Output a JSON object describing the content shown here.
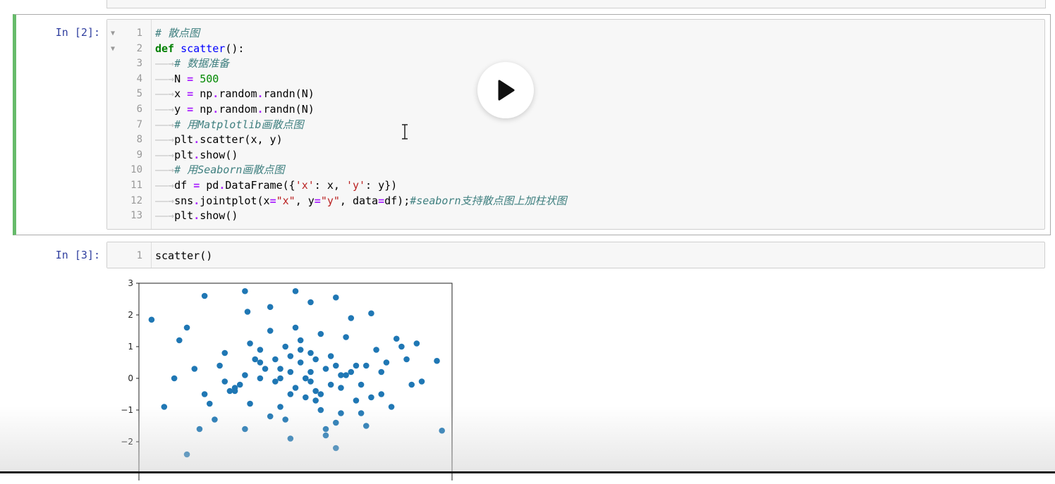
{
  "cells": [
    {
      "prompt": "In [2]:",
      "lines": [
        {
          "n": "1",
          "fold": true,
          "indent": false,
          "tokens": [
            {
              "t": "com",
              "v": "# 散点图"
            }
          ]
        },
        {
          "n": "2",
          "fold": true,
          "indent": false,
          "tokens": [
            {
              "t": "kw",
              "v": "def"
            },
            {
              "t": "",
              "v": " "
            },
            {
              "t": "def",
              "v": "scatter"
            },
            {
              "t": "",
              "v": "():"
            }
          ]
        },
        {
          "n": "3",
          "fold": false,
          "indent": true,
          "tokens": [
            {
              "t": "com",
              "v": "# 数据准备"
            }
          ]
        },
        {
          "n": "4",
          "fold": false,
          "indent": true,
          "tokens": [
            {
              "t": "",
              "v": "N "
            },
            {
              "t": "op",
              "v": "="
            },
            {
              "t": "",
              "v": " "
            },
            {
              "t": "num",
              "v": "500"
            }
          ]
        },
        {
          "n": "5",
          "fold": false,
          "indent": true,
          "tokens": [
            {
              "t": "",
              "v": "x "
            },
            {
              "t": "op",
              "v": "="
            },
            {
              "t": "",
              "v": " np"
            },
            {
              "t": "op",
              "v": "."
            },
            {
              "t": "",
              "v": "random"
            },
            {
              "t": "op",
              "v": "."
            },
            {
              "t": "",
              "v": "randn(N)"
            }
          ]
        },
        {
          "n": "6",
          "fold": false,
          "indent": true,
          "tokens": [
            {
              "t": "",
              "v": "y "
            },
            {
              "t": "op",
              "v": "="
            },
            {
              "t": "",
              "v": " np"
            },
            {
              "t": "op",
              "v": "."
            },
            {
              "t": "",
              "v": "random"
            },
            {
              "t": "op",
              "v": "."
            },
            {
              "t": "",
              "v": "randn(N)"
            }
          ]
        },
        {
          "n": "7",
          "fold": false,
          "indent": true,
          "tokens": [
            {
              "t": "com",
              "v": "# 用Matplotlib画散点图"
            }
          ]
        },
        {
          "n": "8",
          "fold": false,
          "indent": true,
          "tokens": [
            {
              "t": "",
              "v": "plt"
            },
            {
              "t": "op",
              "v": "."
            },
            {
              "t": "",
              "v": "scatter(x, y)"
            }
          ]
        },
        {
          "n": "9",
          "fold": false,
          "indent": true,
          "tokens": [
            {
              "t": "",
              "v": "plt"
            },
            {
              "t": "op",
              "v": "."
            },
            {
              "t": "",
              "v": "show()"
            }
          ]
        },
        {
          "n": "10",
          "fold": false,
          "indent": true,
          "tokens": [
            {
              "t": "com",
              "v": "# 用Seaborn画散点图"
            }
          ]
        },
        {
          "n": "11",
          "fold": false,
          "indent": true,
          "tokens": [
            {
              "t": "",
              "v": "df "
            },
            {
              "t": "op",
              "v": "="
            },
            {
              "t": "",
              "v": " pd"
            },
            {
              "t": "op",
              "v": "."
            },
            {
              "t": "",
              "v": "DataFrame({"
            },
            {
              "t": "str",
              "v": "'x'"
            },
            {
              "t": "",
              "v": ": x, "
            },
            {
              "t": "str",
              "v": "'y'"
            },
            {
              "t": "",
              "v": ": y})"
            }
          ]
        },
        {
          "n": "12",
          "fold": false,
          "indent": true,
          "tokens": [
            {
              "t": "",
              "v": "sns"
            },
            {
              "t": "op",
              "v": "."
            },
            {
              "t": "",
              "v": "jointplot(x"
            },
            {
              "t": "op",
              "v": "="
            },
            {
              "t": "str",
              "v": "\"x\""
            },
            {
              "t": "",
              "v": ", y"
            },
            {
              "t": "op",
              "v": "="
            },
            {
              "t": "str",
              "v": "\"y\""
            },
            {
              "t": "",
              "v": ", data"
            },
            {
              "t": "op",
              "v": "="
            },
            {
              "t": "",
              "v": "df);"
            },
            {
              "t": "com",
              "v": "#seaborn支持散点图上加柱状图"
            }
          ]
        },
        {
          "n": "13",
          "fold": false,
          "indent": true,
          "tokens": [
            {
              "t": "",
              "v": "plt"
            },
            {
              "t": "op",
              "v": "."
            },
            {
              "t": "",
              "v": "show()"
            }
          ]
        }
      ]
    },
    {
      "prompt": "In [3]:",
      "lines": [
        {
          "n": "1",
          "fold": false,
          "indent": false,
          "tokens": [
            {
              "t": "",
              "v": "scatter()"
            }
          ]
        }
      ]
    }
  ],
  "icons": {
    "play": "play-icon",
    "cursor": "text-cursor-icon"
  },
  "colors": {
    "selected_cell_border": "#66bb6a",
    "prompt": "#303f9f",
    "scatter_point": "#1f77b4"
  },
  "chart_data": {
    "type": "scatter",
    "ylim": [
      -3,
      3
    ],
    "xlim": [
      -3.0,
      3.2
    ],
    "yticks": [
      "3",
      "2",
      "1",
      "0",
      "−1",
      "−2"
    ],
    "series": [
      {
        "x": [
          -2.75,
          -2.2,
          -2.05,
          -0.9,
          -0.85,
          0.1,
          0.4,
          -0.4,
          0.9,
          1.2,
          -1.7,
          1.6,
          2.1,
          2.5,
          2.9,
          -2.3,
          0.0,
          -1.1,
          1.0,
          0.5,
          -0.6,
          0.3,
          -0.2,
          0.7,
          1.4,
          -1.3,
          1.8,
          2.3,
          -0.1,
          0.6,
          -0.8,
          1.1,
          -1.5,
          0.2,
          0.9,
          -0.4,
          1.5,
          2.0,
          -2.05,
          -1.8,
          0.8,
          1.3,
          -0.3,
          0.4,
          -1.0,
          0.0,
          0.5,
          1.7,
          -0.6,
          1.0,
          2.6,
          -1.4,
          0.2,
          -0.9,
          1.2,
          -0.2,
          0.7,
          -1.2,
          0.3,
          1.9,
          -0.5,
          0.1,
          0.6,
          -0.7,
          1.6,
          2.2,
          -1.6,
          0.9,
          -0.1,
          0.4,
          -2.5,
          3.0,
          1.4,
          -1.9,
          0.8,
          0.0,
          -0.4,
          0.2,
          1.1,
          -0.8,
          0.5,
          -1.1,
          1.8,
          0.3,
          -0.3,
          0.7,
          1.3,
          -1.3,
          0.1,
          0.6,
          2.4,
          -0.6,
          0.9,
          -0.2,
          1.5,
          -1.7,
          0.4,
          0.0,
          -0.9,
          1.0
        ],
        "y": [
          1.85,
          1.2,
          1.6,
          2.75,
          2.1,
          2.75,
          2.4,
          2.25,
          2.55,
          1.9,
          2.6,
          2.05,
          1.25,
          1.1,
          0.55,
          0.0,
          0.2,
          -0.3,
          0.1,
          -0.4,
          0.5,
          -0.6,
          0.0,
          0.3,
          -0.2,
          0.8,
          -0.5,
          0.6,
          1.0,
          -1.0,
          -0.8,
          1.3,
          -1.3,
          0.9,
          -1.4,
          1.5,
          0.4,
          -0.9,
          -2.4,
          -1.6,
          0.7,
          -0.7,
          -0.1,
          0.2,
          -0.2,
          -0.5,
          0.6,
          0.9,
          0.0,
          -1.1,
          -0.1,
          0.4,
          1.2,
          -1.6,
          0.2,
          -0.9,
          -1.8,
          -0.4,
          0.0,
          0.5,
          0.3,
          -0.3,
          1.4,
          0.6,
          -0.6,
          1.0,
          -0.8,
          0.4,
          -1.3,
          0.8,
          -0.9,
          -1.65,
          -1.1,
          0.3,
          -0.2,
          0.7,
          -1.2,
          0.5,
          0.1,
          1.1,
          -0.7,
          -0.4,
          0.2,
          0.0,
          0.6,
          -1.6,
          0.4,
          -0.1,
          1.6,
          -0.5,
          -0.2,
          0.9,
          -2.2,
          0.3,
          -1.5,
          -0.5,
          -0.1,
          -1.9,
          0.1,
          -0.3
        ]
      }
    ]
  }
}
